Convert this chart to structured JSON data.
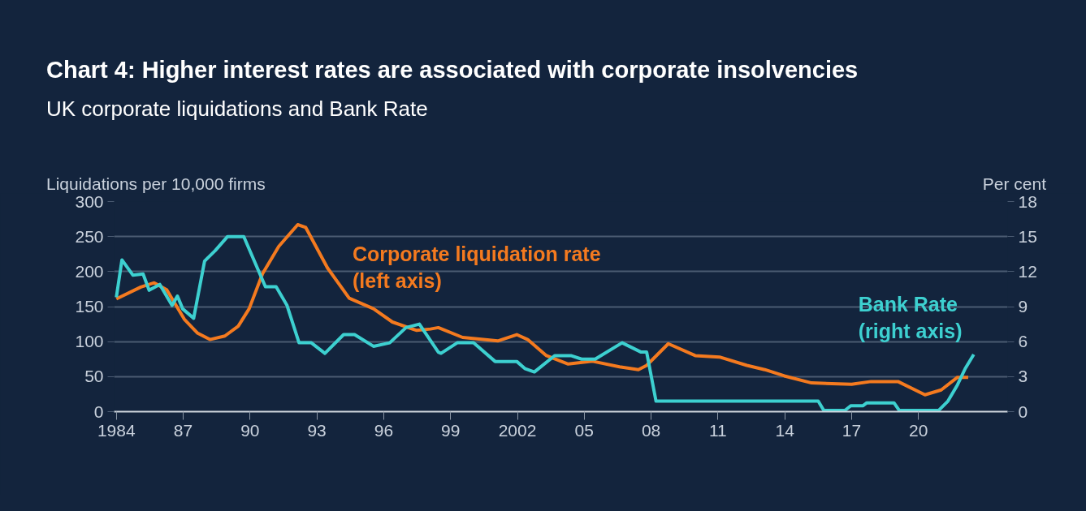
{
  "chart_data": {
    "type": "line",
    "title": "Chart 4: Higher interest rates are associated with corporate insolvencies",
    "subtitle": "UK corporate liquidations and Bank Rate",
    "ylabel": "Liquidations per 10,000 firms",
    "y2label": "Per cent",
    "xlim": [
      1983.9,
      2024
    ],
    "xticks": [
      {
        "value": 1984,
        "label": "1984"
      },
      {
        "value": 1987,
        "label": "87"
      },
      {
        "value": 1990,
        "label": "90"
      },
      {
        "value": 1993,
        "label": "93"
      },
      {
        "value": 1996,
        "label": "96"
      },
      {
        "value": 1999,
        "label": "99"
      },
      {
        "value": 2002,
        "label": "2002"
      },
      {
        "value": 2005,
        "label": "05"
      },
      {
        "value": 2008,
        "label": "08"
      },
      {
        "value": 2011,
        "label": "11"
      },
      {
        "value": 2014,
        "label": "14"
      },
      {
        "value": 2017,
        "label": "17"
      },
      {
        "value": 2020,
        "label": "20"
      }
    ],
    "ylim": [
      0,
      300
    ],
    "yticks": [
      0,
      50,
      100,
      150,
      200,
      250,
      300
    ],
    "y2lim": [
      0,
      18
    ],
    "y2ticks": [
      0,
      3,
      6,
      9,
      12,
      15,
      18
    ],
    "grid": "y",
    "legend": false,
    "line_style": "solid",
    "marker": "none",
    "series": [
      {
        "name": "Corporate liquidation rate\n(left axis)",
        "color": "#f47a1f",
        "x": [
          1984.0,
          1985.1,
          1985.7,
          1986.26,
          1987.05,
          1987.65,
          1988.2,
          1988.87,
          1989.47,
          1989.96,
          1990.56,
          1991.29,
          1992.14,
          1992.5,
          1993.48,
          1994.45,
          1995.54,
          1996.39,
          1997.48,
          1998.1,
          1998.45,
          1999.54,
          2001.12,
          2001.97,
          2002.46,
          2003.3,
          2004.28,
          2005.37,
          2006.58,
          2007.43,
          2007.8,
          2008.77,
          2009.98,
          2011.07,
          2012.3,
          2013.1,
          2013.98,
          2015.2,
          2017.0,
          2017.87,
          2019.08,
          2020.29,
          2021.02,
          2021.75,
          2022.23
        ],
        "values": [
          161,
          178,
          184,
          174,
          132,
          112,
          103,
          108,
          122,
          147,
          197,
          236,
          267,
          263,
          205,
          162,
          147,
          128,
          116,
          118,
          120,
          106,
          101,
          110,
          103,
          80,
          68,
          72,
          64,
          60,
          66,
          97,
          80,
          78,
          66,
          60,
          51,
          41,
          39,
          43,
          43,
          24,
          31,
          49,
          49
        ]
      },
      {
        "name": "Bank Rate\n(right axis)",
        "color": "#3dd0d0",
        "axis": "y2",
        "x": [
          1984.0,
          1984.25,
          1984.74,
          1985.2,
          1985.47,
          1985.95,
          1986.5,
          1986.74,
          1986.98,
          1987.47,
          1987.96,
          1988.44,
          1988.99,
          1989.72,
          1990.69,
          1991.17,
          1991.66,
          1992.2,
          1992.75,
          1993.36,
          1994.2,
          1994.69,
          1995.54,
          1996.27,
          1997.0,
          1997.6,
          1998.45,
          1998.57,
          1999.3,
          2000.03,
          2001.0,
          2001.97,
          2002.33,
          2002.76,
          2003.67,
          2004.4,
          2004.88,
          2005.49,
          2006.7,
          2007.55,
          2007.8,
          2008.22,
          2015.5,
          2015.75,
          2016.7,
          2016.96,
          2017.5,
          2017.68,
          2018.9,
          2019.14,
          2020.9,
          2021.32,
          2021.75,
          2022.1,
          2022.48
        ],
        "values": [
          9.8,
          13.0,
          11.7,
          11.8,
          10.4,
          10.9,
          9.1,
          9.9,
          8.8,
          8.0,
          12.9,
          13.8,
          15.0,
          15.0,
          10.7,
          10.7,
          9.1,
          5.9,
          5.9,
          5.0,
          6.6,
          6.6,
          5.6,
          5.9,
          7.2,
          7.5,
          5.1,
          5.0,
          5.9,
          5.9,
          4.3,
          4.3,
          3.7,
          3.4,
          4.8,
          4.8,
          4.5,
          4.5,
          5.9,
          5.1,
          5.1,
          0.9,
          0.9,
          0.1,
          0.1,
          0.5,
          0.5,
          0.75,
          0.75,
          0.1,
          0.1,
          0.9,
          2.3,
          3.7,
          4.9
        ]
      }
    ]
  }
}
